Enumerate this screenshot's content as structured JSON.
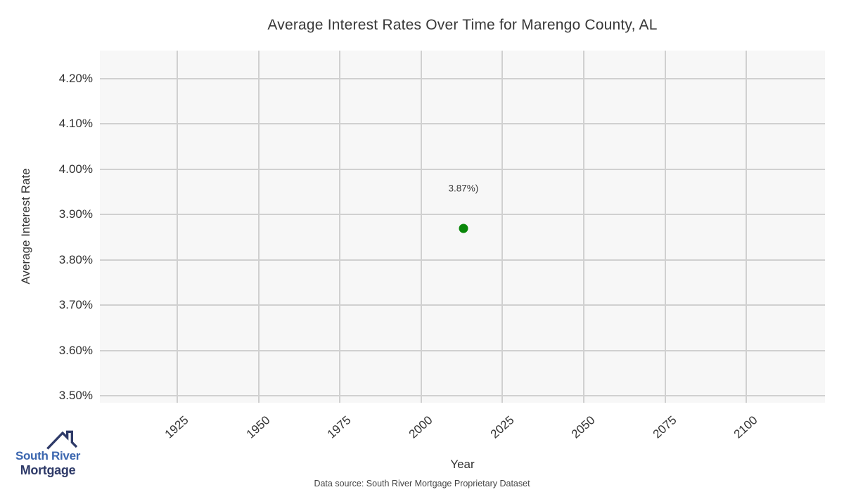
{
  "page": {
    "data_source": "Data source: South River Mortgage Proprietary Dataset"
  },
  "logo": {
    "line1": "South River",
    "line2": "Mortgage",
    "color_primary": "#3b66af",
    "color_dark": "#2e3a68"
  },
  "chart_data": {
    "type": "scatter",
    "title": "Average Interest Rates Over Time for Marengo County, AL",
    "xlabel": "Year",
    "ylabel": "Average Interest Rate",
    "xlim": [
      1901.2,
      2124.2
    ],
    "ylim": [
      3.4845,
      4.2621
    ],
    "xticks": [
      1925,
      1950,
      1975,
      2000,
      2025,
      2050,
      2075,
      2100
    ],
    "xtick_labels": [
      "1925",
      "1950",
      "1975",
      "2000",
      "2025",
      "2050",
      "2075",
      "2100"
    ],
    "yticks": [
      3.5,
      3.6,
      3.7,
      3.8,
      3.9,
      4.0,
      4.1,
      4.2
    ],
    "ytick_labels": [
      "3.50%",
      "3.60%",
      "3.70%",
      "3.80%",
      "3.90%",
      "4.00%",
      "4.10%",
      "4.20%"
    ],
    "grid": true,
    "legend": false,
    "points": [
      {
        "x": 2013,
        "y": 3.87,
        "label": "3.87%)"
      }
    ],
    "point_color": "#0a870a",
    "plot_bg": "#f7f7f7",
    "grid_color": "#d0d0d0"
  }
}
